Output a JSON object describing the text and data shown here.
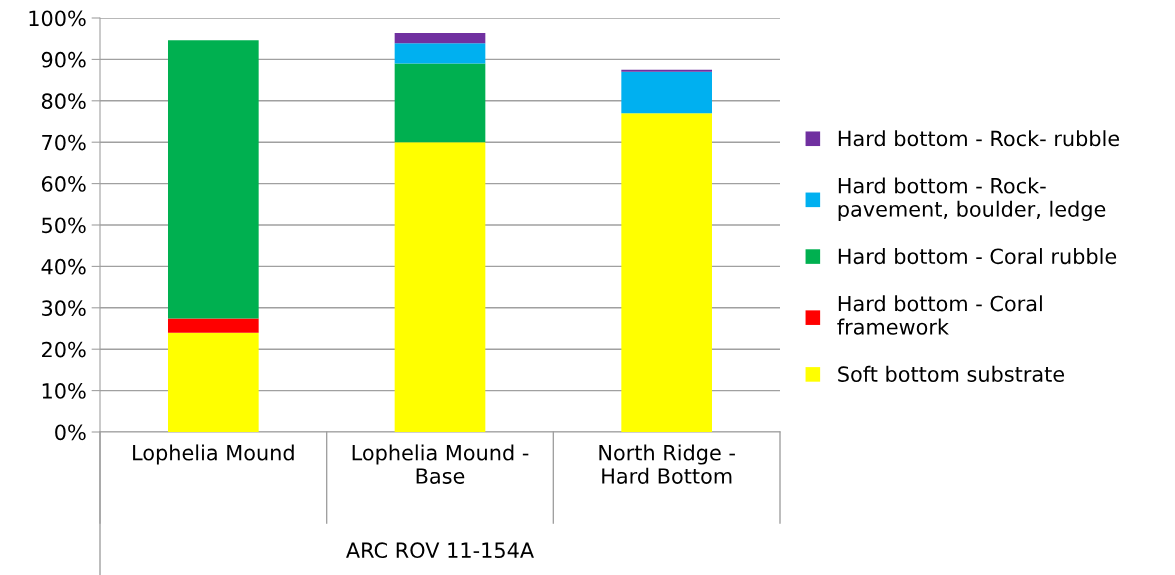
{
  "chart_data": {
    "type": "bar",
    "stacked": true,
    "xlabel": "ARC ROV 11-154A",
    "categories": [
      "Lophelia Mound",
      "Lophelia Mound - Base",
      "North Ridge - Hard Bottom"
    ],
    "series": [
      {
        "name": "Soft bottom substrate",
        "color": "#ffff00",
        "values": [
          24,
          70,
          77
        ]
      },
      {
        "name": "Hard bottom - Coral framework",
        "color": "#ff0000",
        "values": [
          3.4,
          0,
          0
        ]
      },
      {
        "name": "Hard bottom - Coral rubble",
        "color": "#00b050",
        "values": [
          67.2,
          19,
          0
        ]
      },
      {
        "name": "Hard bottom - Rock- pavement, boulder, ledge",
        "color": "#00b0f0",
        "values": [
          0,
          4.9,
          10
        ]
      },
      {
        "name": "Hard bottom - Rock- rubble",
        "color": "#7030a0",
        "values": [
          0,
          2.5,
          0.5
        ]
      }
    ],
    "ylim": [
      0,
      100
    ],
    "yticks": [
      {
        "value": 0,
        "label": "0%"
      },
      {
        "value": 10,
        "label": "10%"
      },
      {
        "value": 20,
        "label": "20%"
      },
      {
        "value": 30,
        "label": "30%"
      },
      {
        "value": 40,
        "label": "40%"
      },
      {
        "value": 50,
        "label": "50%"
      },
      {
        "value": 60,
        "label": "60%"
      },
      {
        "value": 70,
        "label": "70%"
      },
      {
        "value": 80,
        "label": "80%"
      },
      {
        "value": 90,
        "label": "90%"
      },
      {
        "value": 100,
        "label": "100%"
      }
    ],
    "grid": "y",
    "legend": "right"
  }
}
